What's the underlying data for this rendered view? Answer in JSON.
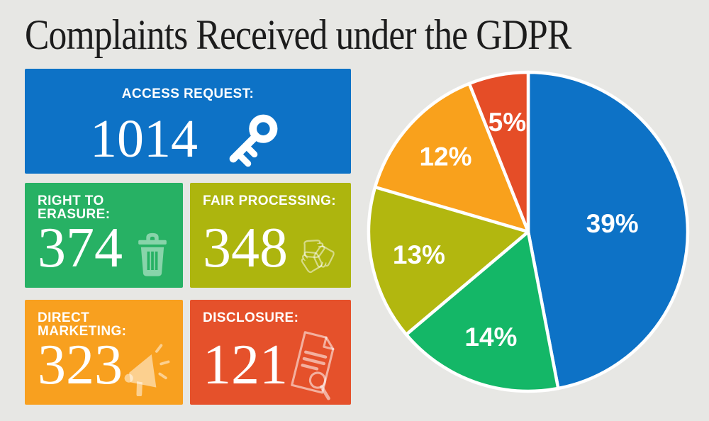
{
  "page": {
    "title": "Complaints Received under the GDPR",
    "background": "#e7e7e4",
    "title_color": "#1c1c1c"
  },
  "cards": [
    {
      "label": "ACCESS REQUEST:",
      "value": "1014",
      "color": "#0d72c6",
      "icon": "key-icon"
    },
    {
      "label": "RIGHT TO ERASURE:",
      "value": "374",
      "color": "#27b164",
      "icon": "trash-icon"
    },
    {
      "label": "FAIR PROCESSING:",
      "value": "348",
      "color": "#adb50e",
      "icon": "hands-recycle-icon"
    },
    {
      "label": "DIRECT MARKETING:",
      "value": "323",
      "color": "#f8a01f",
      "icon": "megaphone-icon"
    },
    {
      "label": "DISCLOSURE:",
      "value": "121",
      "color": "#e5512b",
      "icon": "document-search-icon"
    }
  ],
  "chart_data": {
    "type": "pie",
    "title": "Complaints Received under the GDPR",
    "categories": [
      "Access request",
      "Right to erasure",
      "Fair processing",
      "Direct marketing",
      "Disclosure"
    ],
    "values": [
      39,
      14,
      13,
      12,
      5
    ],
    "unit": "%",
    "labels": [
      "39%",
      "14%",
      "13%",
      "12%",
      "5%"
    ],
    "colors": [
      "#0d72c6",
      "#14b767",
      "#b2b70f",
      "#f9a11c",
      "#e54d27"
    ],
    "start_angle_deg": 0,
    "direction": "clockwise",
    "slice_border_color": "#ffffff",
    "label_color": "#ffffff",
    "legend": "none"
  }
}
